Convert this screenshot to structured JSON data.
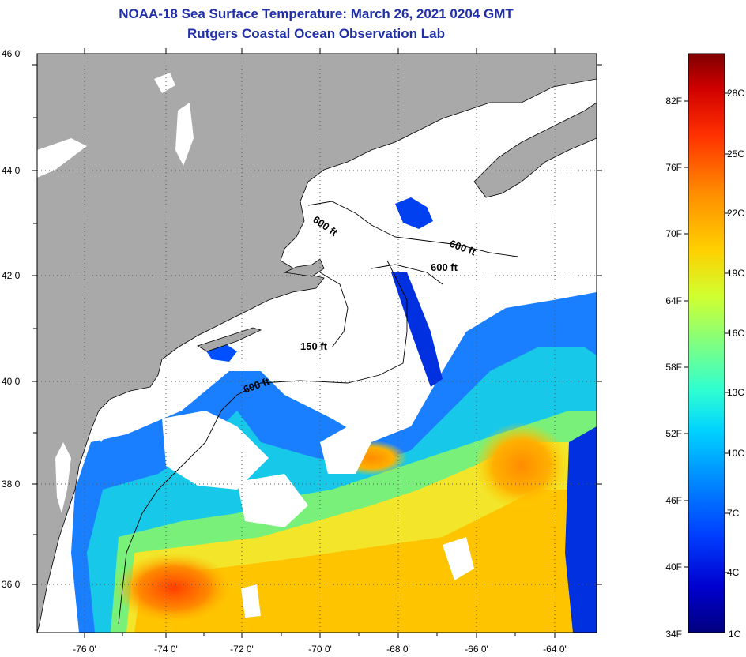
{
  "title_line1": "NOAA-18 Sea Surface Temperature:  March 26, 2021 0204 GMT",
  "title_line2": "Rutgers Coastal Ocean Observation Lab",
  "colors": {
    "land": "#a9a9a9",
    "cloud": "#ffffff",
    "coast": "#000000",
    "ramp": [
      "#00007f",
      "#0000d0",
      "#0040ff",
      "#0090ff",
      "#00d4ff",
      "#30ffd0",
      "#80ff80",
      "#d0ff30",
      "#ffd000",
      "#ff8c00",
      "#ff3000",
      "#d00000",
      "#7f0000"
    ]
  },
  "axes": {
    "lat_labels": [
      "46 0'",
      "44 0'",
      "42 0'",
      "40 0'",
      "38 0'",
      "36 0'"
    ],
    "lon_labels": [
      "-76 0'",
      "-74 0'",
      "-72 0'",
      "-70 0'",
      "-68 0'",
      "-66 0'",
      "-64 0'"
    ]
  },
  "contours": [
    {
      "label": "600 ft",
      "rotate": 35
    },
    {
      "label": "600 ft",
      "rotate": 20
    },
    {
      "label": "600 ft",
      "rotate": 0
    },
    {
      "label": "150 ft",
      "rotate": 0
    },
    {
      "label": "600 ft",
      "rotate": -20
    }
  ],
  "colorbar": {
    "f_labels": [
      "82F",
      "76F",
      "70F",
      "64F",
      "58F",
      "52F",
      "46F",
      "40F",
      "34F"
    ],
    "c_labels": [
      "28C",
      "25C",
      "22C",
      "19C",
      "16C",
      "13C",
      "10C",
      "7C",
      "4C",
      "1C"
    ]
  }
}
